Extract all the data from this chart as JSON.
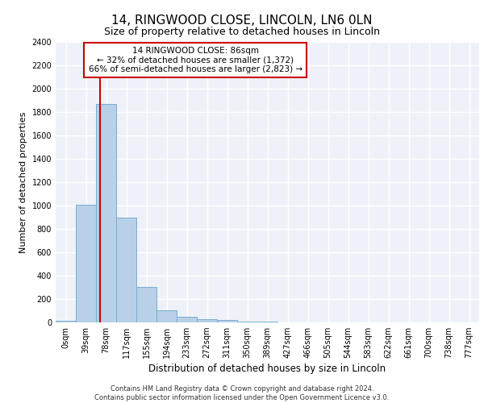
{
  "title": "14, RINGWOOD CLOSE, LINCOLN, LN6 0LN",
  "subtitle": "Size of property relative to detached houses in Lincoln",
  "xlabel": "Distribution of detached houses by size in Lincoln",
  "ylabel": "Number of detached properties",
  "bar_labels": [
    "0sqm",
    "39sqm",
    "78sqm",
    "117sqm",
    "155sqm",
    "194sqm",
    "233sqm",
    "272sqm",
    "311sqm",
    "350sqm",
    "389sqm",
    "427sqm",
    "466sqm",
    "505sqm",
    "544sqm",
    "583sqm",
    "622sqm",
    "661sqm",
    "700sqm",
    "738sqm",
    "777sqm"
  ],
  "bar_values": [
    15,
    1005,
    1870,
    900,
    305,
    105,
    45,
    28,
    18,
    10,
    5,
    3,
    2,
    0,
    0,
    0,
    0,
    0,
    0,
    0,
    0
  ],
  "bar_color": "#b8d0e8",
  "bar_edge_color": "#7aadd4",
  "annotation_line1": "14 RINGWOOD CLOSE: 86sqm",
  "annotation_line2": "← 32% of detached houses are smaller (1,372)",
  "annotation_line3": "66% of semi-detached houses are larger (2,823) →",
  "vline_color": "#cc0000",
  "ylim": [
    0,
    2400
  ],
  "yticks": [
    0,
    200,
    400,
    600,
    800,
    1000,
    1200,
    1400,
    1600,
    1800,
    2000,
    2200,
    2400
  ],
  "footer_line1": "Contains HM Land Registry data © Crown copyright and database right 2024.",
  "footer_line2": "Contains public sector information licensed under the Open Government Licence v3.0.",
  "bin_width": 39,
  "property_sqm": 86,
  "background_color": "#eef2f8",
  "grid_color": "#ffffff",
  "title_fontsize": 11,
  "subtitle_fontsize": 9,
  "ylabel_fontsize": 8,
  "xlabel_fontsize": 8.5,
  "tick_fontsize": 7,
  "annotation_fontsize": 7.5,
  "footer_fontsize": 6
}
